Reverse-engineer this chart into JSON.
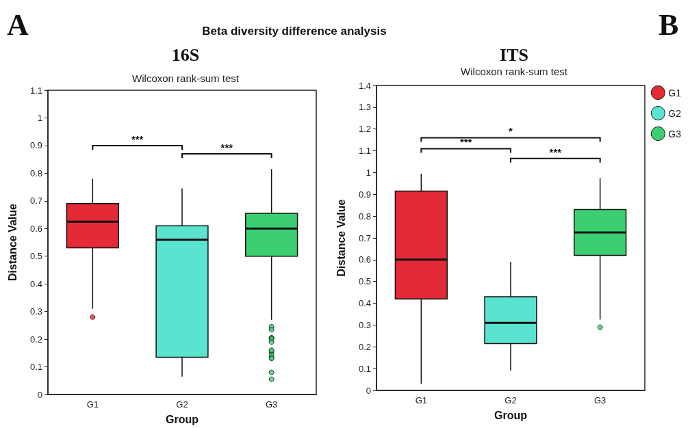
{
  "chart_data": [
    {
      "type": "box",
      "title": "16S",
      "subtitle": "Wilcoxon rank-sum test",
      "xlabel": "Group",
      "ylabel": "Distance Value",
      "categories": [
        "G1",
        "G2",
        "G3"
      ],
      "series": [
        {
          "color": "#e32a36",
          "boxes": [
            {
              "low": 0.31,
              "q1": 0.53,
              "median": 0.625,
              "q3": 0.69,
              "high": 0.78,
              "outliers": [
                0.28
              ]
            },
            null,
            null
          ]
        },
        {
          "color": "#5ae3cf",
          "boxes": [
            null,
            {
              "low": 0.065,
              "q1": 0.135,
              "median": 0.56,
              "q3": 0.61,
              "high": 0.745
            },
            null
          ]
        },
        {
          "color": "#3bcf72",
          "boxes": [
            null,
            null,
            {
              "low": 0.27,
              "q1": 0.5,
              "median": 0.6,
              "q3": 0.655,
              "high": 0.815,
              "outliers": [
                0.245,
                0.205,
                0.135,
                0.235,
                0.205,
                0.2,
                0.19,
                0.145,
                0.155,
                0.16,
                0.13,
                0.08,
                0.055
              ]
            }
          ]
        }
      ],
      "ylim": [
        0,
        1.1
      ],
      "yticks": [
        0,
        0.1,
        0.2,
        0.3,
        0.4,
        0.5,
        0.6,
        0.7,
        0.8,
        0.9,
        1,
        1.1
      ],
      "grid": false,
      "legend": false,
      "annotations": [
        "A",
        "Beta diversity difference analysis",
        "***",
        "***"
      ]
    },
    {
      "type": "box",
      "title": "ITS",
      "subtitle": "Wilcoxon rank-sum test",
      "xlabel": "Group",
      "ylabel": "Distance Value",
      "categories": [
        "G1",
        "G2",
        "G3"
      ],
      "series": [
        {
          "name": "G1",
          "color": "#e32a36",
          "boxes": [
            {
              "low": 0.03,
              "q1": 0.42,
              "median": 0.6,
              "q3": 0.915,
              "high": 0.995
            },
            null,
            null
          ]
        },
        {
          "name": "G2",
          "color": "#5ae3cf",
          "boxes": [
            null,
            {
              "low": 0.09,
              "q1": 0.215,
              "median": 0.31,
              "q3": 0.43,
              "high": 0.59
            },
            null
          ]
        },
        {
          "name": "G3",
          "color": "#3bcf72",
          "boxes": [
            null,
            null,
            {
              "low": 0.325,
              "q1": 0.62,
              "median": 0.725,
              "q3": 0.83,
              "high": 0.975,
              "outliers": [
                0.29
              ]
            }
          ]
        }
      ],
      "ylim": [
        0,
        1.4
      ],
      "yticks": [
        0,
        0.1,
        0.2,
        0.3,
        0.4,
        0.5,
        0.6,
        0.7,
        0.8,
        0.9,
        1,
        1.1,
        1.2,
        1.3,
        1.4
      ],
      "grid": false,
      "legend": "right",
      "annotations": [
        "B",
        "*",
        "***",
        "***"
      ]
    }
  ]
}
